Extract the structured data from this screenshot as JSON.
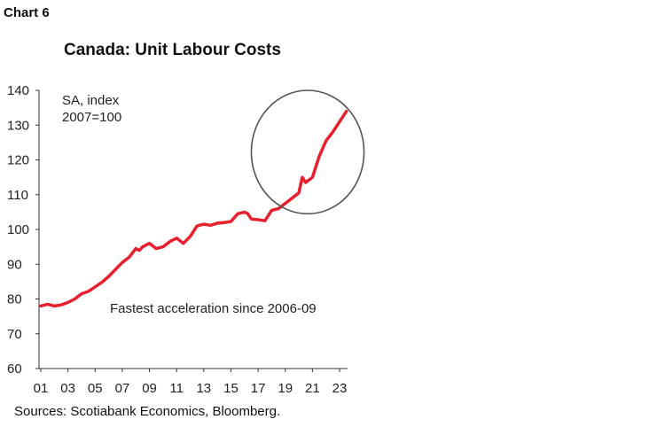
{
  "header": {
    "chart_number": "Chart 6",
    "title": "Canada: Unit Labour Costs"
  },
  "footer": {
    "sources": "Sources: Scotiabank Economics, Bloomberg."
  },
  "colors": {
    "series": "#e8202e",
    "axis": "#333333",
    "ellipse": "#555555"
  },
  "chart_data": {
    "type": "line",
    "title": "Canada: Unit Labour Costs",
    "xlabel": "",
    "ylabel": "",
    "unit_label": "SA, index\n2007=100",
    "unit_label_lines": [
      "SA, index",
      "2007=100"
    ],
    "annotation": "Fastest acceleration since 2006-09",
    "x_ticks": [
      "01",
      "03",
      "05",
      "07",
      "09",
      "11",
      "13",
      "15",
      "17",
      "19",
      "21",
      "23"
    ],
    "y_ticks": [
      140,
      130,
      120,
      110,
      100,
      90,
      80,
      70,
      60
    ],
    "xlim": [
      2001.0,
      2024.0
    ],
    "ylim": [
      60,
      140
    ],
    "grid": false,
    "highlight_ellipse": {
      "x_range": [
        2016.5,
        2024.8
      ],
      "y_range": [
        104.5,
        140
      ]
    },
    "series": [
      {
        "x": [
          2001.0,
          2001.5,
          2002.0,
          2002.5,
          2003.0,
          2003.5,
          2004.0,
          2004.5,
          2005.0,
          2005.5,
          2006.0,
          2006.5,
          2007.0,
          2007.5,
          2008.0,
          2008.25,
          2008.5,
          2009.0,
          2009.5,
          2010.0,
          2010.5,
          2011.0,
          2011.5,
          2012.0,
          2012.5,
          2013.0,
          2013.5,
          2014.0,
          2014.5,
          2015.0,
          2015.5,
          2016.0,
          2016.25,
          2016.5,
          2017.0,
          2017.5,
          2018.0,
          2018.5,
          2019.0,
          2019.5,
          2020.0,
          2020.25,
          2020.5,
          2021.0,
          2021.5,
          2022.0,
          2022.5,
          2023.0,
          2023.5
        ],
        "y": [
          78.0,
          78.5,
          78.0,
          78.3,
          79.0,
          80.0,
          81.5,
          82.2,
          83.5,
          84.8,
          86.5,
          88.5,
          90.5,
          92.0,
          94.5,
          94.0,
          95.0,
          96.0,
          94.5,
          95.0,
          96.5,
          97.5,
          96.0,
          98.0,
          101.0,
          101.5,
          101.2,
          101.8,
          102.0,
          102.3,
          104.5,
          105.0,
          104.5,
          103.0,
          102.8,
          102.5,
          105.5,
          106.0,
          107.5,
          109.0,
          110.5,
          115.0,
          113.5,
          115.0,
          121.0,
          125.5,
          128.0,
          131.0,
          134.0
        ]
      }
    ]
  }
}
